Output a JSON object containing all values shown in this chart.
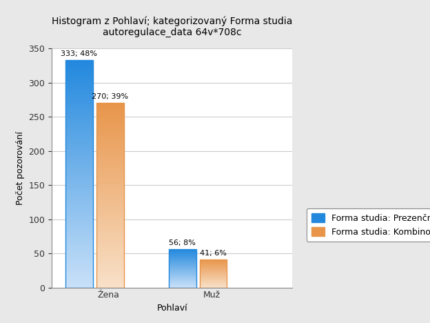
{
  "title_line1": "Histogram z Pohlaví; kategorizovaný Forma studia",
  "title_line2": "autoregulace_data 64v*708c",
  "xlabel": "Pohlaví",
  "ylabel": "Počet pozorování",
  "categories": [
    "Žena",
    "Muž"
  ],
  "series": [
    {
      "name": "Forma studia: Prezenční",
      "values": [
        333,
        56
      ],
      "labels": [
        "333; 48%",
        "56; 8%"
      ],
      "color_top": "#2288dd",
      "color_bottom": "#c8e0f8"
    },
    {
      "name": "Forma studia: Kombinovaná",
      "values": [
        270,
        41
      ],
      "labels": [
        "270; 39%",
        "41; 6%"
      ],
      "color_top": "#e8954a",
      "color_bottom": "#f8e0c8"
    }
  ],
  "ylim": [
    0,
    350
  ],
  "yticks": [
    0,
    50,
    100,
    150,
    200,
    250,
    300,
    350
  ],
  "bar_width": 0.32,
  "group_positions": [
    1.0,
    2.2
  ],
  "bar_gap": 0.04,
  "xlim": [
    0.5,
    3.3
  ],
  "xtick_positions": [
    1.16,
    2.36
  ],
  "background_color": "#e8e8e8",
  "plot_bg_color": "#ffffff",
  "grid_color": "#cccccc",
  "title_fontsize": 10,
  "axis_label_fontsize": 9,
  "tick_fontsize": 9,
  "label_fontsize": 8,
  "legend_fontsize": 9
}
